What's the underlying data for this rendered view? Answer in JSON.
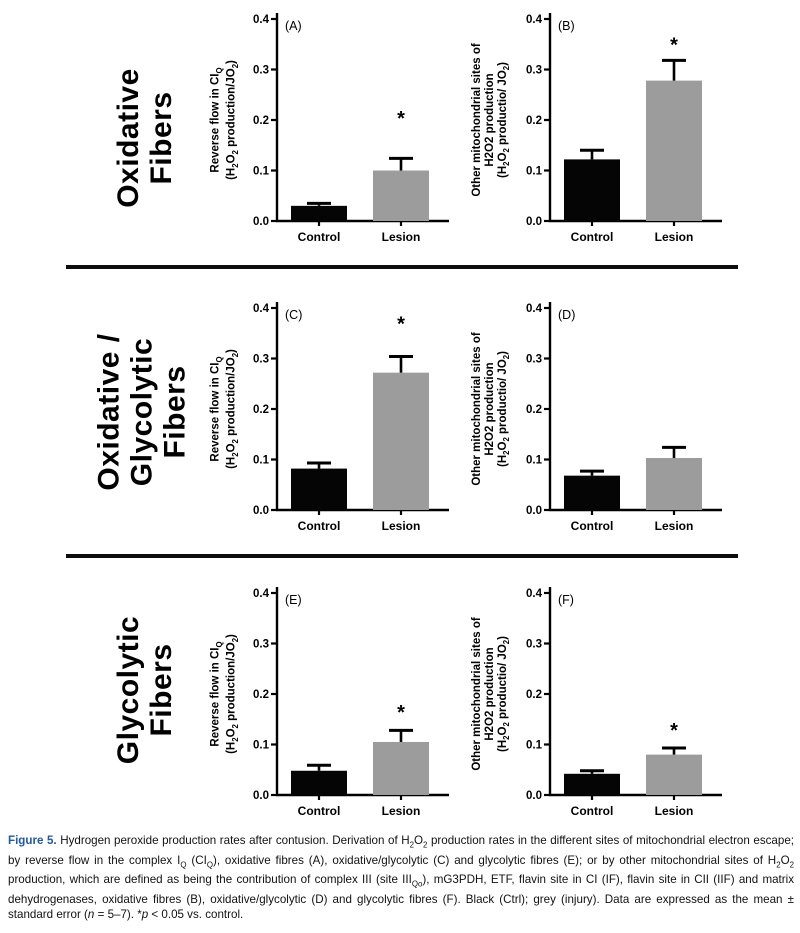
{
  "figure": {
    "row_sections": [
      {
        "id": "oxidative",
        "label_lines": [
          "Oxidative",
          "Fibers"
        ]
      },
      {
        "id": "oxidative-glycolytic",
        "label_lines": [
          "Oxidative /",
          "Glycolytic",
          "Fibers"
        ]
      },
      {
        "id": "glycolytic",
        "label_lines": [
          "Glycolytic",
          "Fibers"
        ]
      }
    ],
    "colors": {
      "control_bar": "#050505",
      "lesion_bar": "#9c9c9c",
      "divider": "#0d0d0d",
      "caption_label": "#2157a6"
    },
    "caption": {
      "label": "Figure 5.",
      "text": "Hydrogen peroxide production rates after contusion. Derivation of H~2~O~2~ production rates in the different sites of mitochondrial electron escape; by reverse flow in the complex I~Q~ (CI~Q~), oxidative fibres (A), oxidative/glycolytic (C) and glycolytic fibres (E); or by other mitochondrial sites of H~2~O~2~ production, which are defined as being the contribution of complex III (site III~Qo~), mG3PDH, ETF, flavin site in CI (IF), flavin site in CII (IIF) and matrix dehydrogenases, oxidative fibres (B), oxidative/glycolytic (D) and glycolytic fibres (F). Black (Ctrl); grey (injury). Data are expressed as the mean ± standard error (^n^ = 5–7). *^p^ < 0.05 vs. control."
    }
  },
  "chart_data": [
    {
      "panel": "(A)",
      "row": "Oxidative Fibers",
      "type": "bar",
      "ylabel_lines": [
        "Reverse flow in CI~Q~",
        "(H~2~O~2~ production/JO~2~)"
      ],
      "categories": [
        "Control",
        "Lesion"
      ],
      "values": [
        0.03,
        0.1
      ],
      "errors": [
        0.005,
        0.024
      ],
      "bar_colors": [
        "#050505",
        "#9c9c9c"
      ],
      "significance": {
        "category": "Lesion",
        "symbol": "*",
        "y": 0.21
      },
      "ylim": [
        0,
        0.4
      ],
      "ytick_labels": [
        "0.0",
        "0.1",
        "0.2",
        "0.3",
        "0.4"
      ]
    },
    {
      "panel": "(B)",
      "row": "Oxidative Fibers",
      "type": "bar",
      "ylabel_lines": [
        "Other mitochondrial sites of",
        "H2O2 production",
        "(H~2~O~2~ productio/ JO~2~)"
      ],
      "categories": [
        "Control",
        "Lesion"
      ],
      "values": [
        0.122,
        0.278
      ],
      "errors": [
        0.018,
        0.04
      ],
      "bar_colors": [
        "#050505",
        "#9c9c9c"
      ],
      "significance": {
        "category": "Lesion",
        "symbol": "*",
        "y": 0.355
      },
      "ylim": [
        0,
        0.4
      ],
      "ytick_labels": [
        "0.0",
        "0.1",
        "0.2",
        "0.3",
        "0.4"
      ]
    },
    {
      "panel": "(C)",
      "row": "Oxidative / Glycolytic Fibers",
      "type": "bar",
      "ylabel_lines": [
        "Reverse flow in CI~Q~",
        "(H~2~O~2~ production/JO~2~)"
      ],
      "categories": [
        "Control",
        "Lesion"
      ],
      "values": [
        0.082,
        0.272
      ],
      "errors": [
        0.011,
        0.032
      ],
      "bar_colors": [
        "#050505",
        "#9c9c9c"
      ],
      "significance": {
        "category": "Lesion",
        "symbol": "*",
        "y": 0.375
      },
      "ylim": [
        0,
        0.4
      ],
      "ytick_labels": [
        "0.0",
        "0.1",
        "0.2",
        "0.3",
        "0.4"
      ]
    },
    {
      "panel": "(D)",
      "row": "Oxidative / Glycolytic Fibers",
      "type": "bar",
      "ylabel_lines": [
        "Other mitochondrial sites of",
        "H2O2 production",
        "(H~2~O~2~ productio/ JO~2~)"
      ],
      "categories": [
        "Control",
        "Lesion"
      ],
      "values": [
        0.068,
        0.103
      ],
      "errors": [
        0.009,
        0.021
      ],
      "bar_colors": [
        "#050505",
        "#9c9c9c"
      ],
      "significance": null,
      "ylim": [
        0,
        0.4
      ],
      "ytick_labels": [
        "0.0",
        "0.1",
        "0.2",
        "0.3",
        "0.4"
      ]
    },
    {
      "panel": "(E)",
      "row": "Glycolytic Fibers",
      "type": "bar",
      "ylabel_lines": [
        "Reverse flow in CI~Q~",
        "(H~2~O~2~ production/JO~2~)"
      ],
      "categories": [
        "Control",
        "Lesion"
      ],
      "values": [
        0.048,
        0.105
      ],
      "errors": [
        0.011,
        0.023
      ],
      "bar_colors": [
        "#050505",
        "#9c9c9c"
      ],
      "significance": {
        "category": "Lesion",
        "symbol": "*",
        "y": 0.17
      },
      "ylim": [
        0,
        0.4
      ],
      "ytick_labels": [
        "0.0",
        "0.1",
        "0.2",
        "0.3",
        "0.4"
      ]
    },
    {
      "panel": "(F)",
      "row": "Glycolytic Fibers",
      "type": "bar",
      "ylabel_lines": [
        "Other mitochondrial sites of",
        "H2O2 production",
        "(H~2~O~2~ productio/ JO~2~)"
      ],
      "categories": [
        "Control",
        "Lesion"
      ],
      "values": [
        0.042,
        0.08
      ],
      "errors": [
        0.006,
        0.013
      ],
      "bar_colors": [
        "#050505",
        "#9c9c9c"
      ],
      "significance": {
        "category": "Lesion",
        "symbol": "*",
        "y": 0.135
      },
      "ylim": [
        0,
        0.4
      ],
      "ytick_labels": [
        "0.0",
        "0.1",
        "0.2",
        "0.3",
        "0.4"
      ]
    }
  ]
}
